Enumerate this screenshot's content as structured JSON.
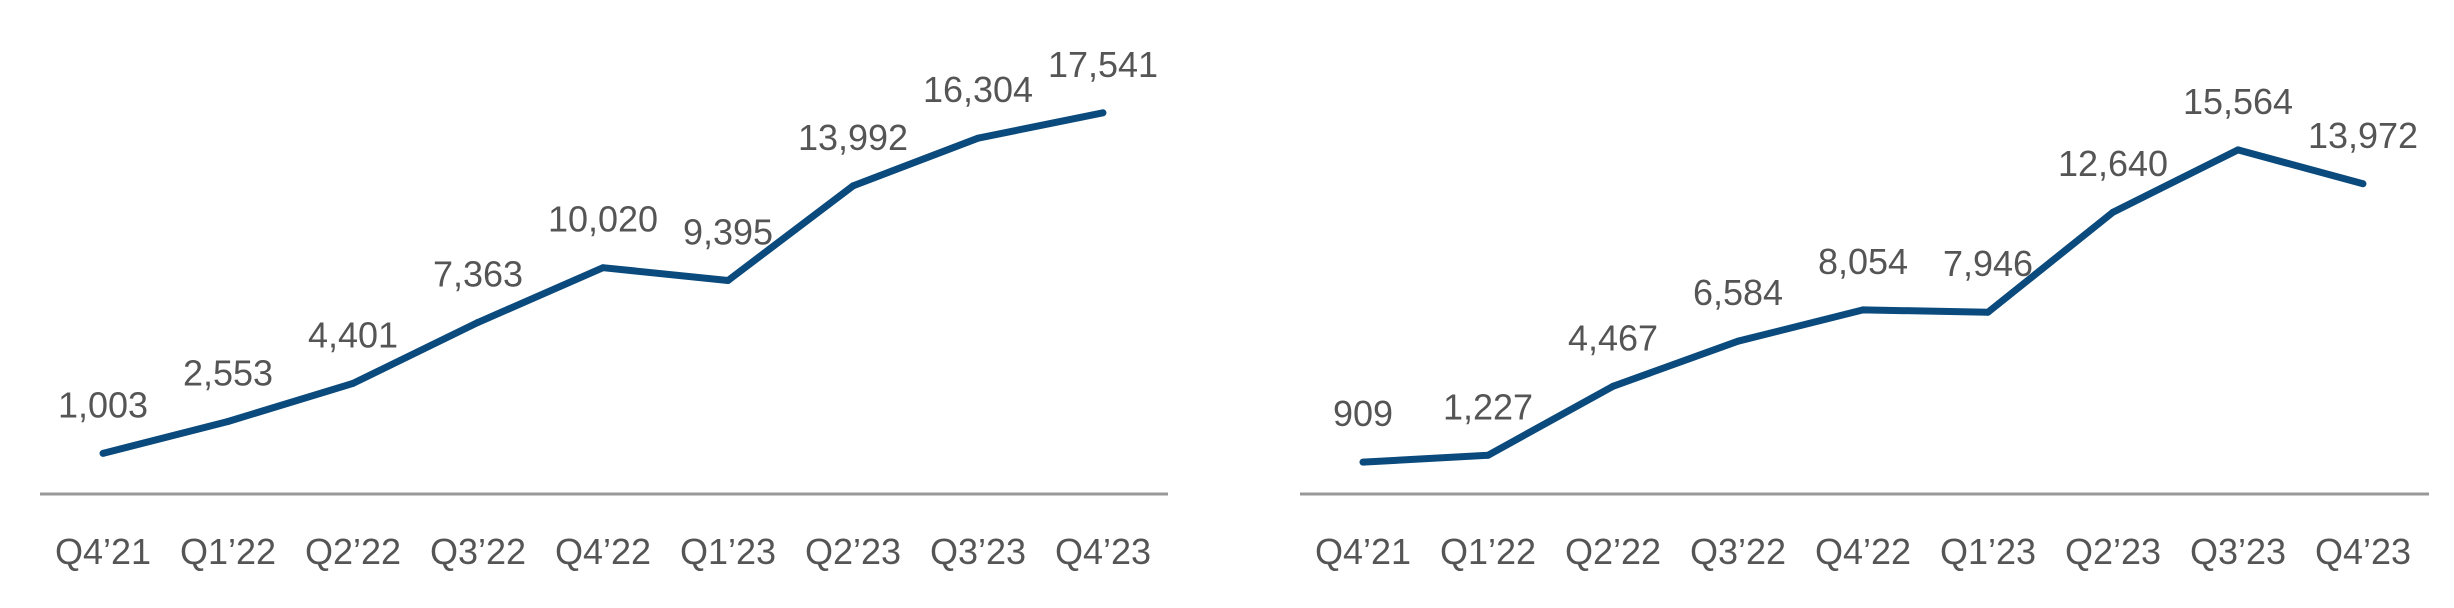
{
  "chart_data": [
    {
      "type": "line",
      "categories": [
        "Q4’21",
        "Q1’22",
        "Q2’22",
        "Q3’22",
        "Q4’22",
        "Q1’23",
        "Q2’23",
        "Q3’23",
        "Q4’23"
      ],
      "values": [
        1003,
        2553,
        4401,
        7363,
        10020,
        9395,
        13992,
        16304,
        17541
      ],
      "data_labels": [
        "1,003",
        "2,553",
        "4,401",
        "7,363",
        "10,020",
        "9,395",
        "13,992",
        "16,304",
        "17,541"
      ],
      "title": "",
      "xlabel": "",
      "ylabel": "",
      "ylim": [
        -1600,
        20200
      ],
      "grid": false,
      "legend": "none",
      "line_color": "#0b4a7d",
      "axis_color": "#999999"
    },
    {
      "type": "line",
      "categories": [
        "Q4’21",
        "Q1’22",
        "Q2’22",
        "Q3’22",
        "Q4’22",
        "Q1’23",
        "Q2’23",
        "Q3’23",
        "Q4’23"
      ],
      "values": [
        909,
        1227,
        4467,
        6584,
        8054,
        7946,
        12640,
        15564,
        13972
      ],
      "data_labels": [
        "909",
        "1,227",
        "4,467",
        "6,584",
        "8,054",
        "7,946",
        "12,640",
        "15,564",
        "13,972"
      ],
      "title": "",
      "xlabel": "",
      "ylabel": "",
      "ylim": [
        -1200,
        18000
      ],
      "grid": false,
      "legend": "none",
      "line_color": "#0b4a7d",
      "axis_color": "#999999"
    }
  ]
}
